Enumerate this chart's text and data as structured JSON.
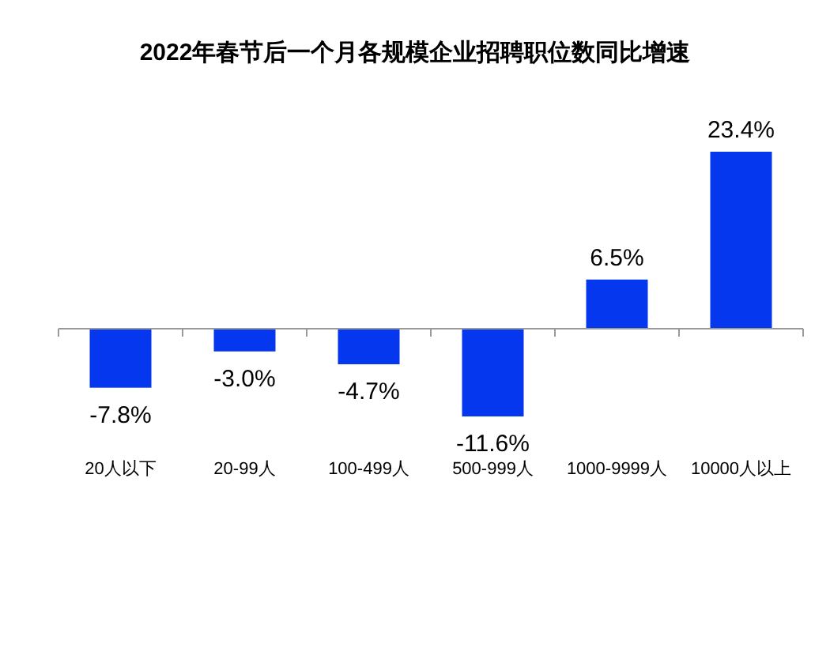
{
  "chart_data": {
    "type": "bar",
    "title": "2022年春节后一个月各规模企业招聘职位数同比增速",
    "categories": [
      "20人以下",
      "20-99人",
      "100-499人",
      "500-999人",
      "1000-9999人",
      "10000人以上"
    ],
    "values": [
      -7.8,
      -3.0,
      -4.7,
      -11.6,
      6.5,
      23.4
    ],
    "value_labels": [
      "-7.8%",
      "-3.0%",
      "-4.7%",
      "-11.6%",
      "6.5%",
      "23.4%"
    ],
    "color": "#0537ee"
  }
}
